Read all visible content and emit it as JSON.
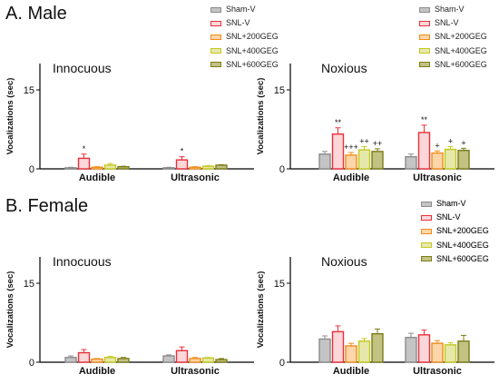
{
  "sections": {
    "male_title": "A. Male",
    "female_title": "B. Female"
  },
  "colors": {
    "series_fill": [
      "#c4c4c4",
      "#fcd7d9",
      "#fcd6a9",
      "#e6e8ab",
      "#c2c282"
    ],
    "series_edge": [
      "#8c8c8c",
      "#e8303a",
      "#f08c1a",
      "#c4c81e",
      "#7c7c1a"
    ]
  },
  "chart_data": [
    {
      "type": "bar",
      "subtitle": "Innocuous",
      "ylabel": "Vocalizations (sec)",
      "ylim": [
        0,
        20
      ],
      "yticks": [
        0,
        15
      ],
      "categories": [
        "Audible",
        "Ultrasonic"
      ],
      "legend": [
        "Sham-V",
        "SNL-V",
        "SNL+200GEG",
        "SNL+400GEG",
        "SNL+600GEG"
      ],
      "series": [
        {
          "name": "Sham-V",
          "values": [
            0.2,
            0.2
          ],
          "errors": [
            0.1,
            0.1
          ]
        },
        {
          "name": "SNL-V",
          "values": [
            2.0,
            1.7
          ],
          "errors": [
            0.8,
            0.6
          ]
        },
        {
          "name": "SNL+200GEG",
          "values": [
            0.3,
            0.3
          ],
          "errors": [
            0.1,
            0.1
          ]
        },
        {
          "name": "SNL+400GEG",
          "values": [
            0.7,
            0.5
          ],
          "errors": [
            0.3,
            0.1
          ]
        },
        {
          "name": "SNL+600GEG",
          "values": [
            0.4,
            0.7
          ],
          "errors": [
            0.1,
            0.1
          ]
        }
      ],
      "annotations": [
        [
          "",
          "*",
          "",
          "",
          ""
        ],
        [
          "",
          "*",
          "",
          "",
          ""
        ]
      ]
    },
    {
      "type": "bar",
      "subtitle": "Noxious",
      "ylabel": "Vocalizations (sec)",
      "ylim": [
        0,
        20
      ],
      "yticks": [
        0,
        15
      ],
      "categories": [
        "Audible",
        "Ultrasonic"
      ],
      "legend": [
        "Sham-V",
        "SNL-V",
        "SNL+200GEG",
        "SNL+400GEG",
        "SNL+600GEG"
      ],
      "series": [
        {
          "name": "Sham-V",
          "values": [
            2.8,
            2.3
          ],
          "errors": [
            0.5,
            0.5
          ]
        },
        {
          "name": "SNL-V",
          "values": [
            6.6,
            6.9
          ],
          "errors": [
            1.2,
            1.4
          ]
        },
        {
          "name": "SNL+200GEG",
          "values": [
            2.6,
            3.0
          ],
          "errors": [
            0.5,
            0.4
          ]
        },
        {
          "name": "SNL+400GEG",
          "values": [
            3.6,
            3.7
          ],
          "errors": [
            0.6,
            0.5
          ]
        },
        {
          "name": "SNL+600GEG",
          "values": [
            3.3,
            3.5
          ],
          "errors": [
            0.5,
            0.4
          ]
        }
      ],
      "annotations": [
        [
          "",
          "**",
          "+++",
          "++",
          "++"
        ],
        [
          "",
          "**",
          "+",
          "+",
          "+"
        ]
      ]
    },
    {
      "type": "bar",
      "subtitle": "Innocuous",
      "ylabel": "Vocalizations (sec)",
      "ylim": [
        0,
        20
      ],
      "yticks": [
        0,
        15
      ],
      "categories": [
        "Audible",
        "Ultrasonic"
      ],
      "legend": [
        "Sham-V",
        "SNL-V",
        "SNL+200GEG",
        "SNL+400GEG",
        "SNL+600GEG"
      ],
      "series": [
        {
          "name": "Sham-V",
          "values": [
            0.9,
            1.2
          ],
          "errors": [
            0.3,
            0.2
          ]
        },
        {
          "name": "SNL-V",
          "values": [
            1.8,
            2.2
          ],
          "errors": [
            0.6,
            0.7
          ]
        },
        {
          "name": "SNL+200GEG",
          "values": [
            0.6,
            0.7
          ],
          "errors": [
            0.1,
            0.2
          ]
        },
        {
          "name": "SNL+400GEG",
          "values": [
            0.9,
            0.8
          ],
          "errors": [
            0.2,
            0.1
          ]
        },
        {
          "name": "SNL+600GEG",
          "values": [
            0.7,
            0.5
          ],
          "errors": [
            0.2,
            0.2
          ]
        }
      ],
      "annotations": [
        [
          "",
          "",
          "",
          "",
          ""
        ],
        [
          "",
          "",
          "",
          "",
          ""
        ]
      ]
    },
    {
      "type": "bar",
      "subtitle": "Noxious",
      "ylabel": "Vocalizations (sec)",
      "ylim": [
        0,
        20
      ],
      "yticks": [
        0,
        15
      ],
      "categories": [
        "Audible",
        "Ultrasonic"
      ],
      "legend": [
        "Sham-V",
        "SNL-V",
        "SNL+200GEG",
        "SNL+400GEG",
        "SNL+600GEG"
      ],
      "series": [
        {
          "name": "Sham-V",
          "values": [
            4.4,
            4.7
          ],
          "errors": [
            0.6,
            0.8
          ]
        },
        {
          "name": "SNL-V",
          "values": [
            5.8,
            5.2
          ],
          "errors": [
            1.1,
            0.9
          ]
        },
        {
          "name": "SNL+200GEG",
          "values": [
            3.1,
            3.6
          ],
          "errors": [
            0.5,
            0.5
          ]
        },
        {
          "name": "SNL+400GEG",
          "values": [
            4.0,
            3.3
          ],
          "errors": [
            0.5,
            0.4
          ]
        },
        {
          "name": "SNL+600GEG",
          "values": [
            5.4,
            4.0
          ],
          "errors": [
            0.9,
            1.1
          ]
        }
      ],
      "annotations": [
        [
          "",
          "",
          "",
          "",
          ""
        ],
        [
          "",
          "",
          "",
          "",
          ""
        ]
      ]
    }
  ]
}
